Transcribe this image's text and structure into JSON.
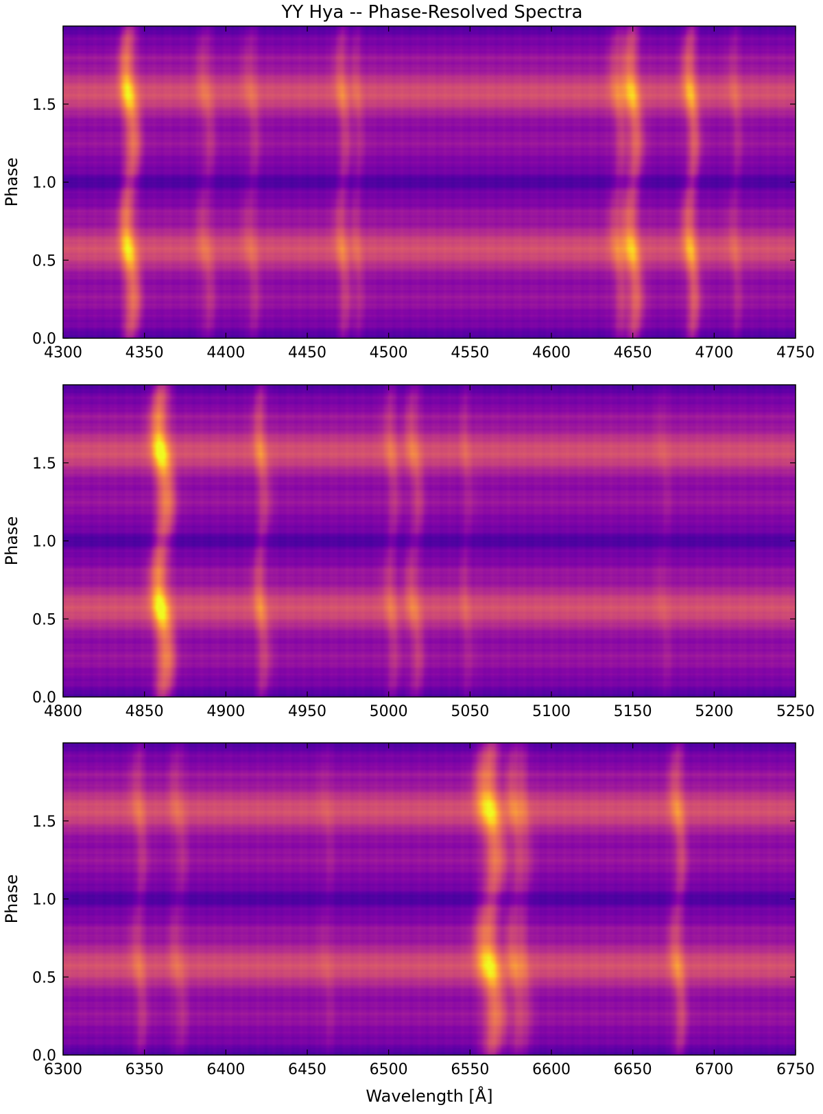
{
  "figure_title": "YY Hya -- Phase-Resolved Spectra",
  "colormap": [
    "#0d0887",
    "#3e049c",
    "#6300a7",
    "#8707a6",
    "#a62098",
    "#c03a83",
    "#d5536f",
    "#e56b5d",
    "#f2844b",
    "#fca636",
    "#fcce25",
    "#f0f921"
  ],
  "chart_data": [
    {
      "type": "heatmap",
      "title": "",
      "xlabel": "",
      "ylabel": "Phase",
      "xlim": [
        4300,
        4750
      ],
      "ylim": [
        0.0,
        2.0
      ],
      "xticks": [
        "4300",
        "4350",
        "4400",
        "4450",
        "4500",
        "4550",
        "4600",
        "4650",
        "4700",
        "4750"
      ],
      "yticks": [
        "0.0",
        "0.5",
        "1.0",
        "1.5"
      ],
      "emission_lines": [
        {
          "wavelength": 4341,
          "strength": 1.0,
          "width": 3.5
        },
        {
          "wavelength": 4388,
          "strength": 0.35,
          "width": 3.0
        },
        {
          "wavelength": 4416,
          "strength": 0.3,
          "width": 3.0
        },
        {
          "wavelength": 4472,
          "strength": 0.45,
          "width": 3.0
        },
        {
          "wavelength": 4481,
          "strength": 0.25,
          "width": 2.5
        },
        {
          "wavelength": 4641,
          "strength": 0.45,
          "width": 3.0
        },
        {
          "wavelength": 4650,
          "strength": 0.85,
          "width": 3.5
        },
        {
          "wavelength": 4686,
          "strength": 0.75,
          "width": 3.0
        },
        {
          "wavelength": 4713,
          "strength": 0.25,
          "width": 2.5
        }
      ]
    },
    {
      "type": "heatmap",
      "title": "",
      "xlabel": "",
      "ylabel": "Phase",
      "xlim": [
        4800,
        5250
      ],
      "ylim": [
        0.0,
        2.0
      ],
      "xticks": [
        "4800",
        "4850",
        "4900",
        "4950",
        "5000",
        "5050",
        "5100",
        "5150",
        "5200",
        "5250"
      ],
      "yticks": [
        "0.0",
        "0.5",
        "1.0",
        "1.5"
      ],
      "emission_lines": [
        {
          "wavelength": 4861,
          "strength": 1.15,
          "width": 4.0
        },
        {
          "wavelength": 4922,
          "strength": 0.5,
          "width": 3.0
        },
        {
          "wavelength": 5002,
          "strength": 0.35,
          "width": 3.0
        },
        {
          "wavelength": 5016,
          "strength": 0.45,
          "width": 3.0
        },
        {
          "wavelength": 5048,
          "strength": 0.2,
          "width": 2.5
        },
        {
          "wavelength": 5169,
          "strength": 0.15,
          "width": 2.5
        }
      ]
    },
    {
      "type": "heatmap",
      "title": "",
      "xlabel": "Wavelength [Å]",
      "ylabel": "Phase",
      "xlim": [
        6300,
        6750
      ],
      "ylim": [
        0.0,
        2.0
      ],
      "xticks": [
        "6300",
        "6350",
        "6400",
        "6450",
        "6500",
        "6550",
        "6600",
        "6650",
        "6700",
        "6750"
      ],
      "yticks": [
        "0.0",
        "0.5",
        "1.0",
        "1.5"
      ],
      "emission_lines": [
        {
          "wavelength": 6347,
          "strength": 0.35,
          "width": 3.0
        },
        {
          "wavelength": 6371,
          "strength": 0.3,
          "width": 3.0
        },
        {
          "wavelength": 6462,
          "strength": 0.15,
          "width": 2.5
        },
        {
          "wavelength": 6563,
          "strength": 1.05,
          "width": 5.0
        },
        {
          "wavelength": 6578,
          "strength": 0.5,
          "width": 3.0
        },
        {
          "wavelength": 6584,
          "strength": 0.3,
          "width": 2.5
        },
        {
          "wavelength": 6678,
          "strength": 0.55,
          "width": 3.0
        }
      ]
    }
  ]
}
